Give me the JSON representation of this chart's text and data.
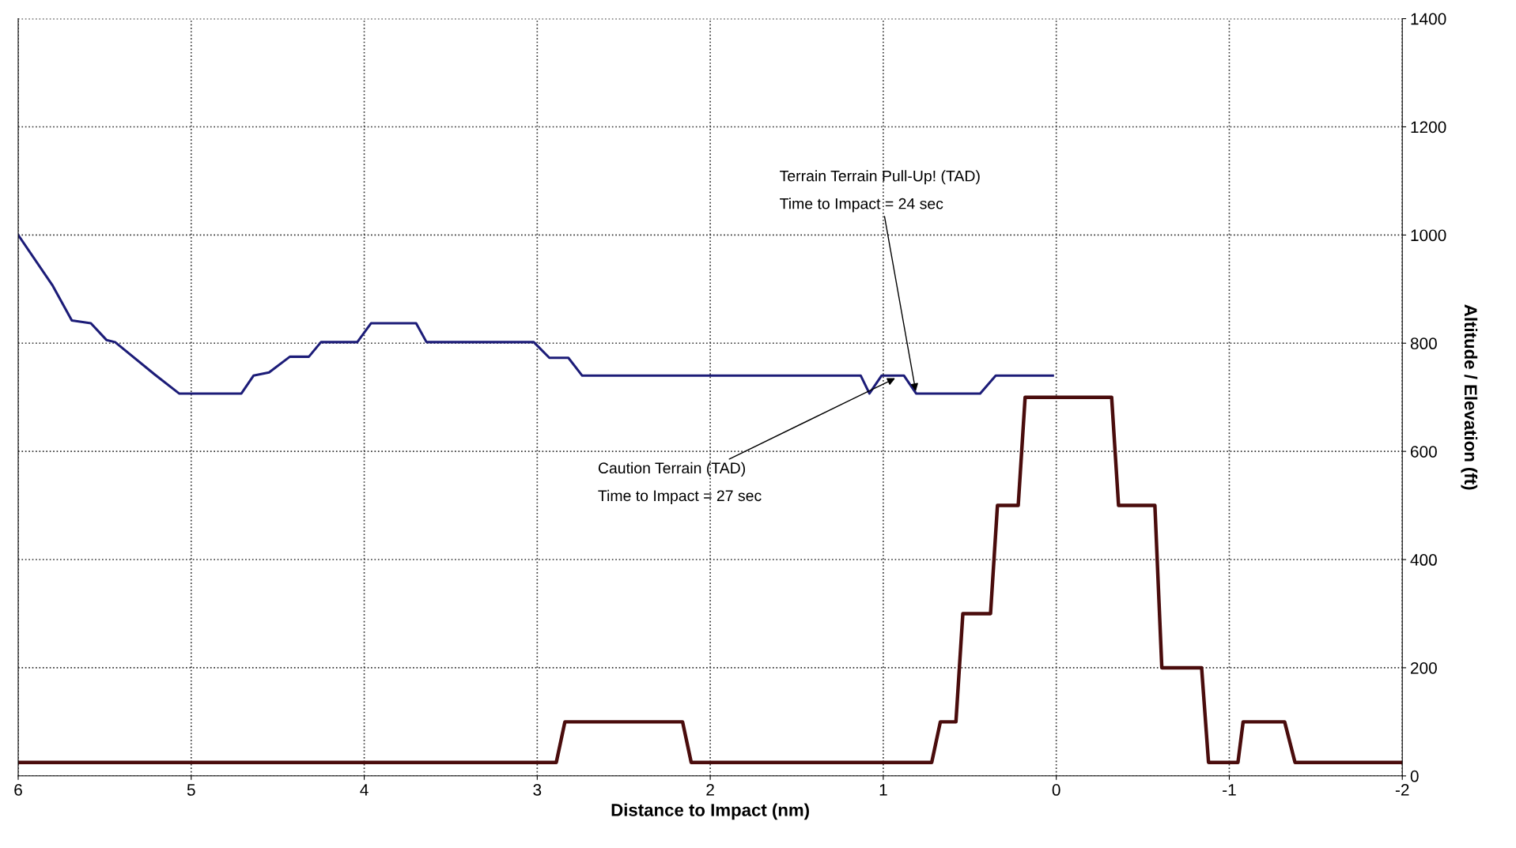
{
  "chart_data": {
    "type": "line",
    "xlabel": "Distance to Impact (nm)",
    "ylabel": "Altitude / Elevation (ft)",
    "xlim": [
      6,
      -2
    ],
    "xticks": [
      6,
      5,
      4,
      3,
      2,
      1,
      0,
      -1,
      -2
    ],
    "ylim": [
      0,
      1400
    ],
    "yticks": [
      0,
      200,
      400,
      600,
      800,
      1000,
      1200,
      1400
    ],
    "grid": true,
    "line_style": "solid",
    "marker": "none",
    "legend": false,
    "series": [
      {
        "color": "#1c1c78",
        "x": [
          6,
          5.8,
          5.69,
          5.58,
          5.49,
          5.44,
          5.21,
          5.07,
          4.71,
          4.64,
          4.55,
          4.43,
          4.32,
          4.25,
          4.04,
          3.96,
          3.7,
          3.64,
          3.02,
          2.93,
          2.82,
          2.74,
          1.13,
          1.08,
          1.01,
          0.88,
          0.81,
          0.44,
          0.35,
          0.02
        ],
        "values": [
          1000,
          906,
          842,
          837,
          806,
          802,
          742,
          707,
          707,
          740,
          746,
          775,
          775,
          802,
          802,
          837,
          837,
          802,
          802,
          773,
          773,
          740,
          740,
          707,
          740,
          740,
          707,
          707,
          740,
          740
        ]
      },
      {
        "color": "#4a0c0c",
        "x": [
          6,
          2.89,
          2.84,
          2.16,
          2.11,
          0.72,
          0.67,
          0.58,
          0.54,
          0.38,
          0.34,
          0.22,
          0.18,
          -0.32,
          -0.36,
          -0.57,
          -0.61,
          -0.84,
          -0.88,
          -1.05,
          -1.08,
          -1.32,
          -1.38,
          -2
        ],
        "values": [
          25,
          25,
          100,
          100,
          25,
          25,
          100,
          100,
          300,
          300,
          500,
          500,
          700,
          700,
          500,
          500,
          200,
          200,
          25,
          25,
          100,
          100,
          25,
          25
        ]
      }
    ],
    "annotations": [
      {
        "text": "Terrain Terrain Pull-Up! (TAD)\nTime to Impact = 24 sec",
        "x": 0.81,
        "y": 707
      },
      {
        "text": "Caution Terrain (TAD)\nTime to Impact = 27 sec",
        "x": 0.92,
        "y": 737
      }
    ]
  }
}
